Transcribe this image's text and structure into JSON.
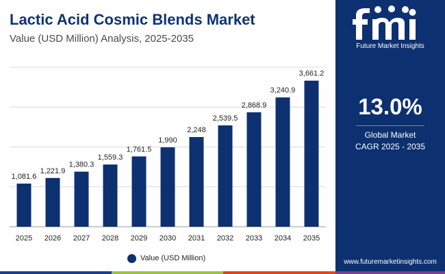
{
  "header": {
    "title": "Lactic Acid Cosmic Blends Market",
    "subtitle": "Value (USD Million) Analysis, 2025-2035"
  },
  "brand": {
    "logo_text": "fmi",
    "caption": "Future Market Insights",
    "website": "www.futuremarketinsights.com"
  },
  "stat": {
    "cagr_value": "13.0%",
    "label_line1": "Global Market",
    "label_line2": "CAGR 2025 - 2035"
  },
  "legend": {
    "label": "Value (USD Million)"
  },
  "colors": {
    "bar": "#0d3070",
    "title": "#0d3473",
    "panel": "#0d3070",
    "stripes": [
      "#1c3f8c",
      "#9cc33b",
      "#e6421b",
      "#7a3f8f"
    ]
  },
  "chart_data": {
    "type": "bar",
    "title": "Lactic Acid Cosmic Blends Market",
    "subtitle": "Value (USD Million) Analysis, 2025-2035",
    "xlabel": "",
    "ylabel": "",
    "categories": [
      "2025",
      "2026",
      "2027",
      "2028",
      "2029",
      "2030",
      "2031",
      "2032",
      "2033",
      "2034",
      "2035"
    ],
    "series": [
      {
        "name": "Value (USD Million)",
        "values": [
          1081.6,
          1221.9,
          1380.3,
          1559.3,
          1761.5,
          1990,
          2248,
          2539.5,
          2868.9,
          3240.9,
          3661.2
        ],
        "labels": [
          "1,081.6",
          "1,221.9",
          "1,380.3",
          "1,559.3",
          "1,761.5",
          "1,990",
          "2,248",
          "2,539.5",
          "2,868.9",
          "3,240.9",
          "3,661.2"
        ]
      }
    ],
    "ylim": [
      0,
      4000
    ],
    "grid": true,
    "y_tick_labels_shown": false,
    "legend_position": "bottom-center"
  }
}
